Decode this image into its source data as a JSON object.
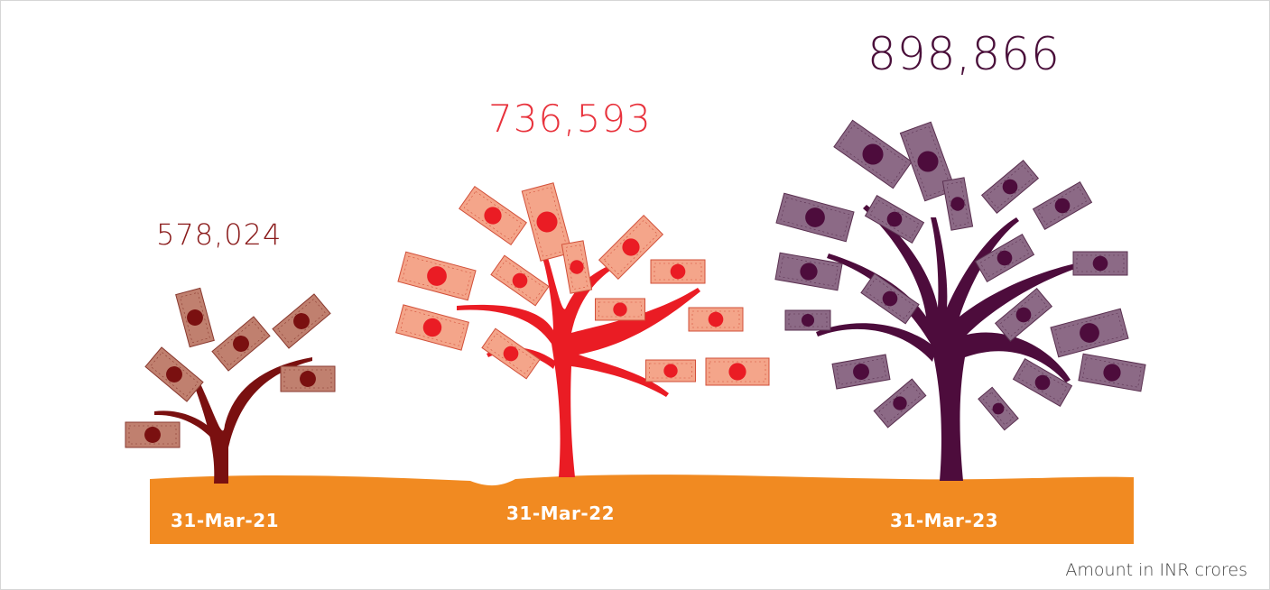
{
  "items": [
    {
      "date": "31-Mar-21",
      "amount": "578,024"
    },
    {
      "date": "31-Mar-22",
      "amount": "736,593"
    },
    {
      "date": "31-Mar-23",
      "amount": "898,866"
    }
  ],
  "note": "Amount in INR crores"
}
